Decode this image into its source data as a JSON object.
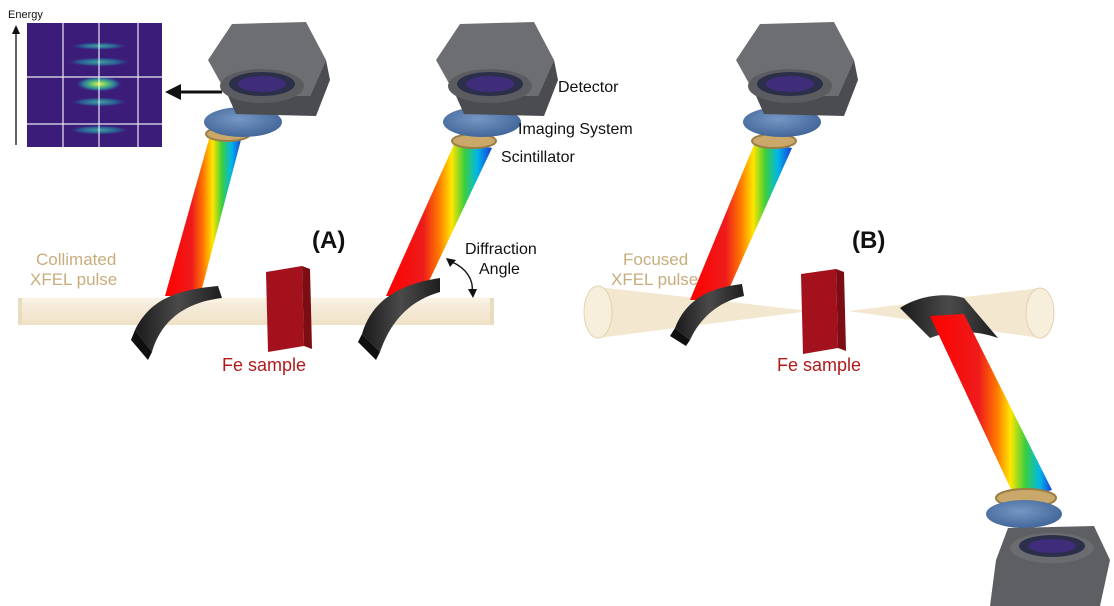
{
  "energy_axis_label": "Energy",
  "panel_a": {
    "tag": "(A)",
    "beam_label_line1": "Collimated",
    "beam_label_line2": "XFEL pulse",
    "sample_label": "Fe sample",
    "detector_label": "Detector",
    "imaging_label": "Imaging System",
    "scintillator_label": "Scintillator",
    "angle_label_line1": "Diffraction",
    "angle_label_line2": "Angle"
  },
  "panel_b": {
    "tag": "(B)",
    "beam_label_line1": "Focused",
    "beam_label_line2": "XFEL pulse",
    "sample_label": "Fe sample"
  },
  "colors": {
    "beam": "#f5ead6",
    "sample": "#a3121c",
    "tan_label": "#c8ad7c",
    "label_red": "#b01a1a",
    "detector_body": "#5a5c60",
    "lens": "#4f76a8",
    "scintillator_ring": "#c9a86a",
    "spectrum_bg": "#3b1c78"
  },
  "icons": [
    "arrow-left-icon",
    "arrow-up-icon",
    "curved-arrow-icon"
  ]
}
